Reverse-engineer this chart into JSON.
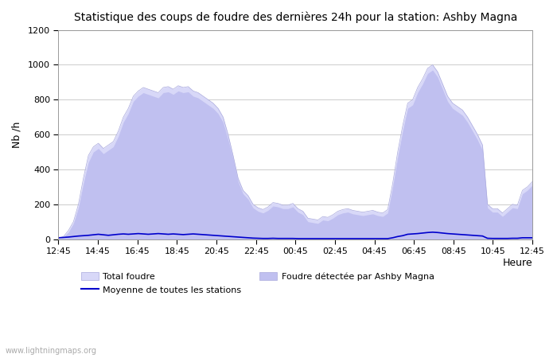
{
  "title": "Statistique des coups de foudre des dernières 24h pour la station: Ashby Magna",
  "ylabel": "Nb /h",
  "xlabel_right": "Heure",
  "watermark": "www.lightningmaps.org",
  "ylim": [
    0,
    1200
  ],
  "yticks": [
    0,
    200,
    400,
    600,
    800,
    1000,
    1200
  ],
  "xtick_labels": [
    "12:45",
    "14:45",
    "16:45",
    "18:45",
    "20:45",
    "22:45",
    "00:45",
    "02:45",
    "04:45",
    "06:45",
    "08:45",
    "10:45",
    "12:45"
  ],
  "legend_items": [
    {
      "label": "Total foudre",
      "color": "#ccccff",
      "type": "fill"
    },
    {
      "label": "Moyenne de toutes les stations",
      "color": "#0000cc",
      "type": "line"
    },
    {
      "label": "Foudre détectée par Ashby Magna",
      "color": "#9999ee",
      "type": "fill"
    }
  ],
  "fill_color_light": "#ddddf5",
  "fill_color_dark": "#bbbbee",
  "line_color": "#0000cc",
  "background_color": "#ffffff",
  "grid_color": "#cccccc",
  "x_values": [
    0,
    1,
    2,
    3,
    4,
    5,
    6,
    7,
    8,
    9,
    10,
    11,
    12,
    13,
    14,
    15,
    16,
    17,
    18,
    19,
    20,
    21,
    22,
    23,
    24,
    25,
    26,
    27,
    28,
    29,
    30,
    31,
    32,
    33,
    34,
    35,
    36,
    37,
    38,
    39,
    40,
    41,
    42,
    43,
    44,
    45,
    46,
    47,
    48,
    49,
    50,
    51,
    52,
    53,
    54,
    55,
    56,
    57,
    58,
    59,
    60,
    61,
    62,
    63,
    64,
    65,
    66,
    67,
    68,
    69,
    70,
    71,
    72,
    73,
    74,
    75,
    76,
    77,
    78,
    79,
    80,
    81,
    82,
    83,
    84,
    85,
    86,
    87,
    88,
    89,
    90,
    91,
    92,
    93,
    94,
    95
  ],
  "total_foudre": [
    5,
    15,
    50,
    100,
    200,
    350,
    480,
    530,
    550,
    520,
    540,
    560,
    620,
    700,
    750,
    820,
    850,
    870,
    860,
    850,
    840,
    870,
    875,
    860,
    880,
    870,
    875,
    850,
    840,
    820,
    800,
    780,
    750,
    700,
    600,
    480,
    350,
    280,
    250,
    200,
    180,
    170,
    185,
    210,
    205,
    195,
    195,
    205,
    175,
    160,
    120,
    115,
    110,
    130,
    125,
    140,
    160,
    170,
    175,
    165,
    160,
    155,
    160,
    165,
    155,
    150,
    170,
    320,
    500,
    650,
    780,
    800,
    870,
    920,
    980,
    1000,
    960,
    890,
    820,
    780,
    760,
    740,
    700,
    650,
    600,
    540,
    200,
    175,
    175,
    150,
    175,
    200,
    195,
    280,
    300,
    330
  ],
  "ashby_magna": [
    4,
    12,
    40,
    90,
    180,
    320,
    440,
    500,
    520,
    490,
    510,
    530,
    590,
    670,
    720,
    790,
    820,
    840,
    830,
    820,
    810,
    840,
    845,
    830,
    850,
    840,
    845,
    820,
    810,
    790,
    770,
    750,
    720,
    670,
    570,
    460,
    330,
    260,
    230,
    180,
    160,
    150,
    165,
    190,
    185,
    175,
    175,
    185,
    155,
    140,
    100,
    95,
    90,
    110,
    105,
    120,
    140,
    150,
    155,
    145,
    140,
    135,
    140,
    145,
    135,
    130,
    150,
    300,
    470,
    620,
    750,
    770,
    840,
    890,
    950,
    970,
    930,
    860,
    790,
    750,
    730,
    710,
    670,
    620,
    570,
    510,
    180,
    155,
    155,
    130,
    155,
    180,
    175,
    260,
    280,
    310
  ],
  "moyenne": [
    8,
    10,
    12,
    15,
    18,
    20,
    22,
    25,
    28,
    25,
    22,
    25,
    28,
    30,
    28,
    30,
    32,
    30,
    28,
    30,
    32,
    30,
    28,
    30,
    28,
    26,
    28,
    30,
    28,
    26,
    24,
    22,
    20,
    18,
    16,
    14,
    12,
    10,
    8,
    6,
    5,
    4,
    4,
    5,
    4,
    4,
    4,
    4,
    3,
    3,
    3,
    3,
    3,
    3,
    3,
    3,
    3,
    3,
    3,
    3,
    3,
    3,
    3,
    3,
    3,
    3,
    3,
    8,
    15,
    20,
    28,
    30,
    32,
    35,
    38,
    40,
    38,
    35,
    32,
    30,
    28,
    26,
    24,
    22,
    20,
    18,
    5,
    4,
    4,
    4,
    4,
    5,
    5,
    8,
    8,
    8
  ]
}
